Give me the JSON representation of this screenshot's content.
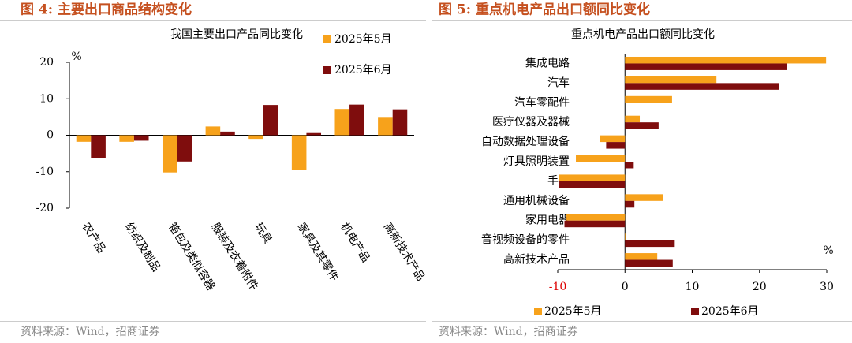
{
  "chart_data": [
    {
      "type": "bar",
      "figure_title": "图 4: 主要出口商品结构变化",
      "title": "我国主要出口产品同比变化",
      "unit": "%",
      "source": "资料来源：Wind，招商证券",
      "categories": [
        "农产品",
        "纺织及制品",
        "箱包及类似容器",
        "服装及衣着附件",
        "玩具",
        "家具及其零件",
        "机电产品",
        "高新技术产品"
      ],
      "series": [
        {
          "name": "2025年5月",
          "color": "#f7a21b",
          "values": [
            -1.8,
            -1.8,
            -10.2,
            2.4,
            -1.0,
            -9.6,
            7.2,
            4.8
          ]
        },
        {
          "name": "2025年6月",
          "color": "#7f0d0d",
          "values": [
            -6.3,
            -1.5,
            -7.2,
            1.0,
            8.3,
            0.6,
            8.4,
            7.1
          ]
        }
      ],
      "ylim": [
        -20,
        20
      ],
      "yticks": [
        -20,
        -10,
        0,
        10,
        20
      ],
      "legend": "upper right"
    },
    {
      "type": "barh",
      "figure_title": "图 5: 重点机电产品出口额同比变化",
      "title": "重点机电产品出口额同比变化",
      "unit": "%",
      "source": "资料来源：Wind，招商证券",
      "categories": [
        "集成电路",
        "汽车",
        "汽车零配件",
        "医疗仪器及器械",
        "自动数据处理设备",
        "灯具照明装置",
        "手机",
        "通用机械设备",
        "家用电器",
        "音视频设备的零件",
        "高新技术产品"
      ],
      "series": [
        {
          "name": "2025年5月",
          "color": "#f7a21b",
          "values": [
            29.9,
            13.6,
            7.0,
            2.2,
            -3.7,
            -7.3,
            -9.8,
            5.6,
            -8.7,
            0.2,
            4.8
          ]
        },
        {
          "name": "2025年6月",
          "color": "#7f0d0d",
          "values": [
            24.1,
            22.9,
            null,
            5.0,
            -2.8,
            1.3,
            -9.8,
            1.4,
            -9.0,
            7.4,
            7.1
          ]
        }
      ],
      "xlim": [
        -10,
        30
      ],
      "xticks": [
        -10,
        0,
        10,
        20,
        30
      ],
      "legend": "bottom"
    }
  ]
}
